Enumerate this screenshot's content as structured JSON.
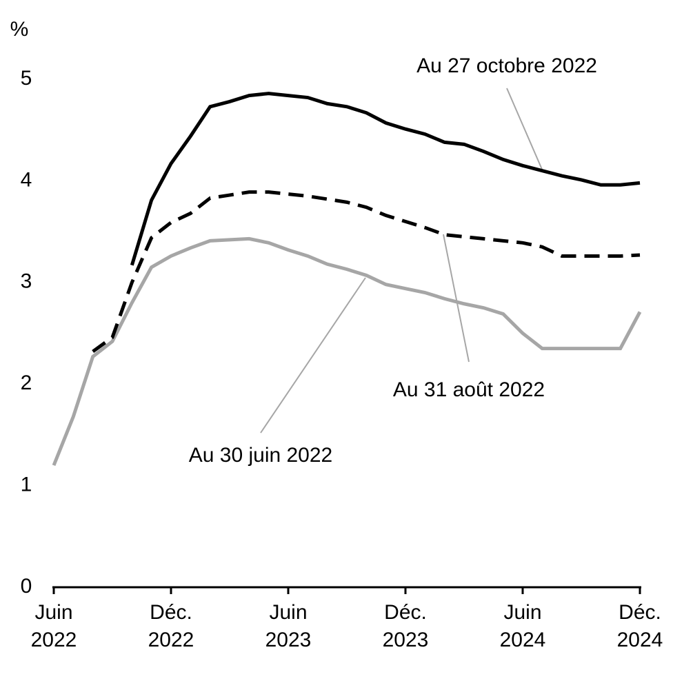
{
  "chart_data": {
    "type": "line",
    "y_label": "%",
    "categories": [
      "Juin 2022",
      null,
      null,
      null,
      null,
      null,
      "Déc. 2022",
      null,
      null,
      null,
      null,
      null,
      "Juin 2023",
      null,
      null,
      null,
      null,
      null,
      "Déc. 2023",
      null,
      null,
      null,
      null,
      null,
      "Juin 2024",
      null,
      null,
      null,
      null,
      null,
      "Déc. 2024"
    ],
    "ylim": [
      0,
      5
    ],
    "yticks": [
      0,
      1,
      2,
      3,
      4,
      5
    ],
    "grid": false,
    "series": [
      {
        "name": "Au 30 juin 2022",
        "color": "#a6a6a6",
        "line_style": "solid",
        "values": [
          1.2,
          1.68,
          2.27,
          2.42,
          2.8,
          3.15,
          3.26,
          3.34,
          3.41,
          3.42,
          3.43,
          3.39,
          3.32,
          3.26,
          3.18,
          3.13,
          3.07,
          2.98,
          2.94,
          2.9,
          2.84,
          2.79,
          2.75,
          2.69,
          2.5,
          2.35,
          2.35,
          2.35,
          2.35,
          2.35,
          2.71
        ]
      },
      {
        "name": "Au 31 août 2022",
        "color": "#000000",
        "line_style": "dashed",
        "values": [
          null,
          null,
          2.32,
          2.46,
          3.0,
          3.44,
          3.59,
          3.68,
          3.83,
          3.86,
          3.89,
          3.89,
          3.87,
          3.85,
          3.82,
          3.79,
          3.74,
          3.66,
          3.6,
          3.54,
          3.47,
          3.45,
          3.43,
          3.41,
          3.39,
          3.35,
          3.26,
          3.26,
          3.26,
          3.26,
          3.27
        ]
      },
      {
        "name": "Au 27 octobre 2022",
        "color": "#000000",
        "line_style": "solid",
        "values": [
          null,
          null,
          null,
          null,
          3.17,
          3.81,
          4.17,
          4.44,
          4.73,
          4.78,
          4.84,
          4.86,
          4.84,
          4.82,
          4.76,
          4.73,
          4.67,
          4.57,
          4.51,
          4.46,
          4.38,
          4.36,
          4.29,
          4.21,
          4.15,
          4.1,
          4.05,
          4.01,
          3.96,
          3.96,
          3.98
        ]
      }
    ]
  }
}
